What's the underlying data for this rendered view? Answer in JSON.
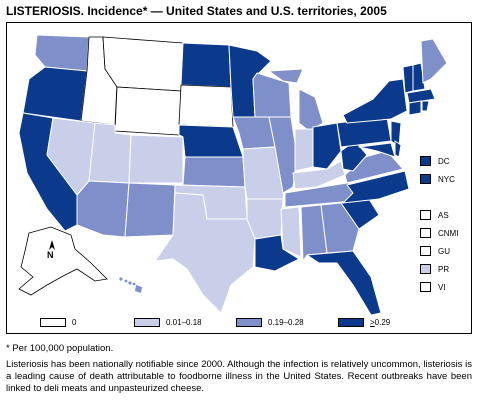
{
  "title": "LISTERIOSIS. Incidence* — United States and U.S. territories, 2005",
  "colors": {
    "zero": "#ffffff",
    "low": "#c9cfe8",
    "mid": "#7f8fca",
    "high": "#0b3a8c"
  },
  "legend": [
    {
      "label": "0",
      "category": "zero"
    },
    {
      "label": "0.01–0.18",
      "category": "low"
    },
    {
      "label": "0.19–0.28",
      "category": "mid"
    },
    {
      "label_prefix": ">",
      "label_rest": "0.29",
      "category": "high"
    }
  ],
  "side_boxes": [
    {
      "label": "DC",
      "category": "high"
    },
    {
      "label": "NYC",
      "category": "high"
    },
    {
      "label": "AS",
      "category": "zero"
    },
    {
      "label": "CNMI",
      "category": "zero"
    },
    {
      "label": "GU",
      "category": "zero"
    },
    {
      "label": "PR",
      "category": "low"
    },
    {
      "label": "VI",
      "category": "zero"
    }
  ],
  "compass": "N",
  "footnote": "* Per 100,000 population.",
  "note": "Listeriosis has been nationally notifiable since 2000. Although the infection is relatively uncommon, listeriosis is a leading cause of death attributable to foodborne illness in the United States. Recent outbreaks have been linked to deli meats and unpasteurized cheese."
}
